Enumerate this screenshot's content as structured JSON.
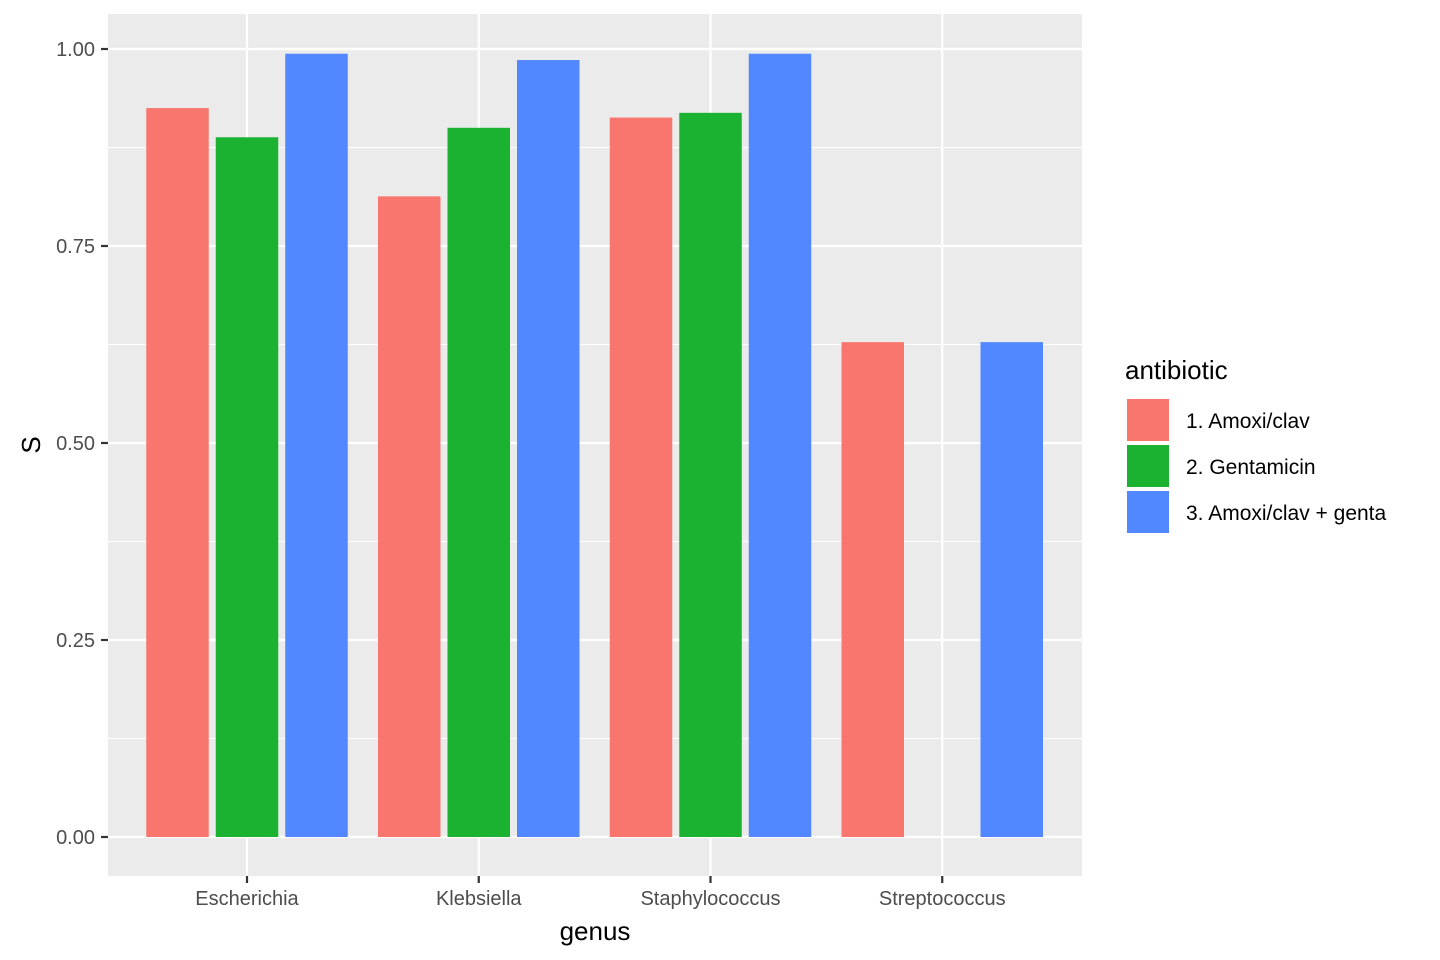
{
  "chart_data": {
    "type": "bar",
    "xlabel": "genus",
    "ylabel": "S",
    "ylim": [
      0,
      1.05
    ],
    "y_ticks": [
      0,
      0.25,
      0.5,
      0.75,
      1.0
    ],
    "y_tick_labels": [
      "0.00",
      "0.25",
      "0.50",
      "0.75",
      "1.00"
    ],
    "categories": [
      "Escherichia",
      "Klebsiella",
      "Staphylococcus",
      "Streptococcus"
    ],
    "legend": {
      "title": "antibiotic",
      "placement": "right"
    },
    "series": [
      {
        "name": "1. Amoxi/clav",
        "color": "#F8766D",
        "values": [
          0.925,
          0.813,
          0.913,
          0.628
        ]
      },
      {
        "name": "2. Gentamicin",
        "color": "#1BB232",
        "values": [
          0.888,
          0.9,
          0.919,
          null
        ]
      },
      {
        "name": "3. Amoxi/clav + genta",
        "color": "#5288FF",
        "values": [
          0.994,
          0.986,
          0.994,
          0.628
        ]
      }
    ],
    "grid": true,
    "panel_background": "#EBEBEB"
  }
}
